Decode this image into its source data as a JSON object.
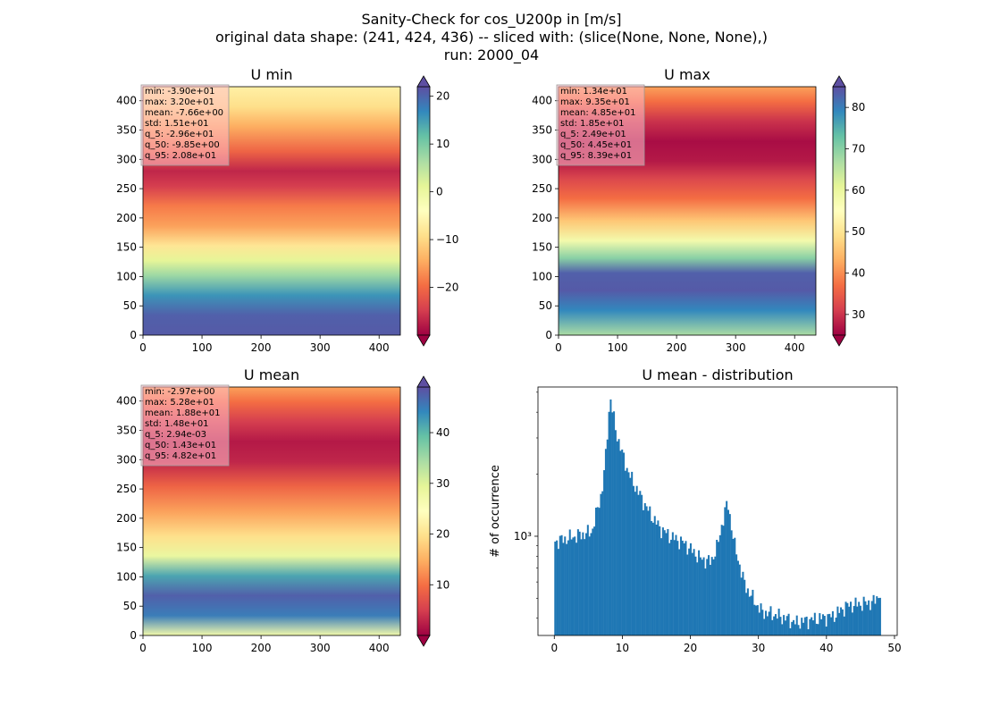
{
  "suptitle": {
    "line1": "Sanity-Check for cos_U200p in [m/s]",
    "line2": "original data shape: (241, 424, 436) -- sliced with: (slice(None, None, None),)",
    "line3": "run: 2000_04"
  },
  "colors": {
    "colormap": "Spectral",
    "spectral_stops": [
      "#9e0142",
      "#d53e4f",
      "#f46d43",
      "#fdae61",
      "#fee08b",
      "#ffffbf",
      "#e6f598",
      "#abdda4",
      "#66c2a5",
      "#3288bd",
      "#5e4fa2"
    ],
    "histogram_fill": "#1f77b4",
    "stats_box_fill": "#ffc0cb"
  },
  "chart_data": [
    {
      "type": "heatmap",
      "id": "umin",
      "title": "U min",
      "xlabel": "",
      "ylabel": "",
      "xlim": [
        0,
        436
      ],
      "ylim": [
        0,
        424
      ],
      "xticks": [
        0,
        100,
        200,
        300,
        400
      ],
      "yticks": [
        0,
        50,
        100,
        150,
        200,
        250,
        300,
        350,
        400
      ],
      "colorbar": {
        "vmin": -30,
        "vmax": 22,
        "ticks": [
          -20,
          -10,
          0,
          10,
          20
        ],
        "tick_labels": [
          "−20",
          "−10",
          "0",
          "10",
          "20"
        ],
        "extend": "both"
      },
      "stats": [
        "min: -3.90e+01",
        "max: 3.20e+01",
        "mean: -7.66e+00",
        "std: 1.51e+01",
        "q_5: -2.96e+01",
        "q_50: -9.85e+00",
        "q_95: 2.08e+01"
      ]
    },
    {
      "type": "heatmap",
      "id": "umax",
      "title": "U max",
      "xlabel": "",
      "ylabel": "",
      "xlim": [
        0,
        436
      ],
      "ylim": [
        0,
        424
      ],
      "xticks": [
        0,
        100,
        200,
        300,
        400
      ],
      "yticks": [
        0,
        50,
        100,
        150,
        200,
        250,
        300,
        350,
        400
      ],
      "colorbar": {
        "vmin": 25,
        "vmax": 85,
        "ticks": [
          30,
          40,
          50,
          60,
          70,
          80
        ],
        "tick_labels": [
          "30",
          "40",
          "50",
          "60",
          "70",
          "80"
        ],
        "extend": "both"
      },
      "stats": [
        "min: 1.34e+01",
        "max: 9.35e+01",
        "mean: 4.85e+01",
        "std: 1.85e+01",
        "q_5: 2.49e+01",
        "q_50: 4.45e+01",
        "q_95: 8.39e+01"
      ]
    },
    {
      "type": "heatmap",
      "id": "umean",
      "title": "U mean",
      "xlabel": "",
      "ylabel": "",
      "xlim": [
        0,
        436
      ],
      "ylim": [
        0,
        424
      ],
      "xticks": [
        0,
        100,
        200,
        300,
        400
      ],
      "yticks": [
        0,
        50,
        100,
        150,
        200,
        250,
        300,
        350,
        400
      ],
      "colorbar": {
        "vmin": 0,
        "vmax": 49,
        "ticks": [
          10,
          20,
          30,
          40
        ],
        "tick_labels": [
          "10",
          "20",
          "30",
          "40"
        ],
        "extend": "both"
      },
      "stats": [
        "min: -2.97e+00",
        "max: 5.28e+01",
        "mean: 1.88e+01",
        "std: 1.48e+01",
        "q_5: 2.94e-03",
        "q_50: 1.43e+01",
        "q_95: 4.82e+01"
      ]
    },
    {
      "type": "bar",
      "id": "hist",
      "title": "U mean - distribution",
      "xlabel": "",
      "ylabel": "# of occurrence",
      "log_y": true,
      "xlim": [
        -2.4,
        50.4
      ],
      "ylim": [
        330,
        5300
      ],
      "xticks": [
        0,
        10,
        20,
        30,
        40,
        50
      ],
      "yticks": [
        1000
      ],
      "ytick_labels": [
        "10³"
      ],
      "x": [
        0.0,
        5.5,
        7.0,
        7.5,
        8.2,
        9.0,
        10.0,
        11.0,
        12.5,
        14.0,
        15.5,
        17.0,
        19.0,
        21.5,
        23.0,
        24.0,
        25.0,
        25.5,
        26.5,
        28.0,
        29.5,
        30.5,
        32.0,
        34.0,
        35.5,
        37.0,
        39.0,
        41.0,
        43.0,
        45.0,
        47.0,
        48.0
      ],
      "values": [
        940,
        1050,
        1650,
        2300,
        4800,
        3300,
        2500,
        2000,
        1600,
        1300,
        1100,
        1000,
        930,
        780,
        750,
        900,
        1300,
        1450,
        900,
        580,
        480,
        430,
        420,
        400,
        380,
        390,
        400,
        410,
        460,
        470,
        480,
        540
      ]
    }
  ]
}
